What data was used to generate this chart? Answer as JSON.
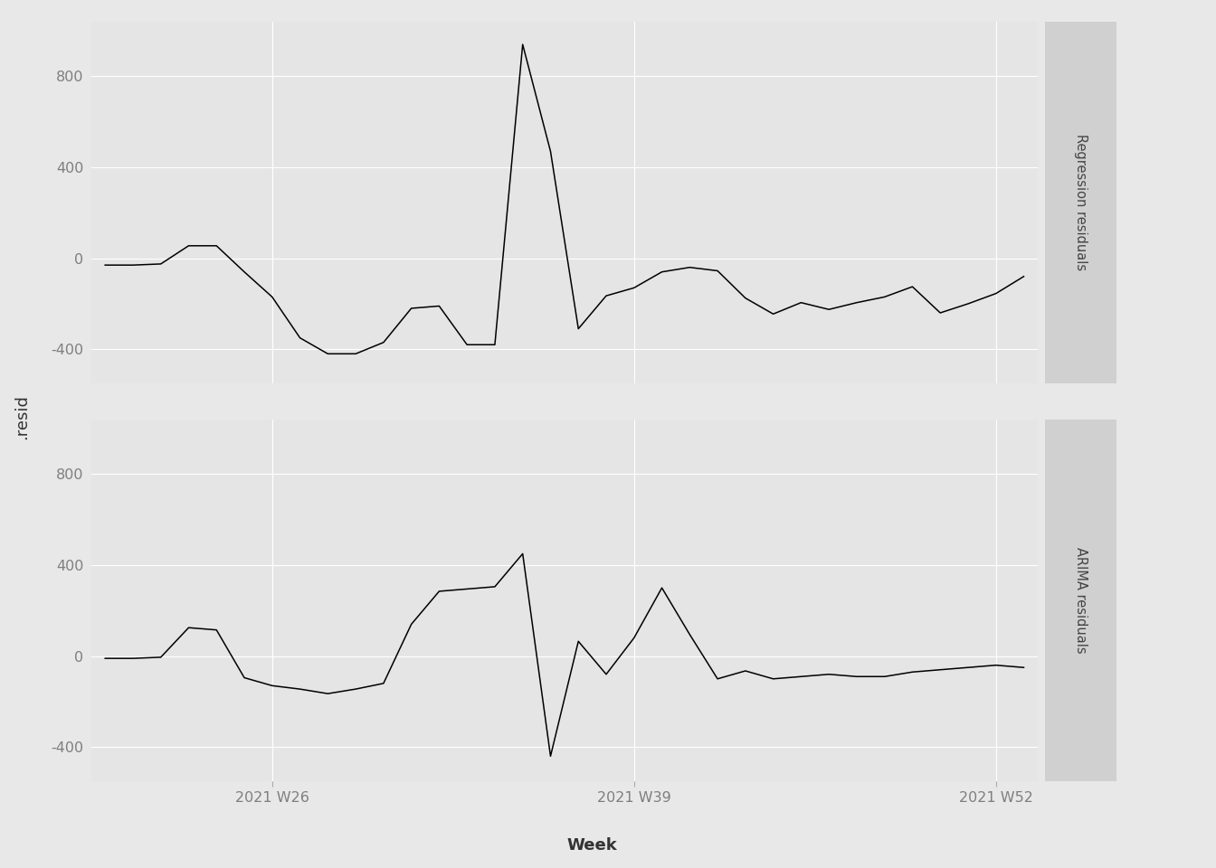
{
  "regression_residuals": [
    -30,
    -30,
    -25,
    55,
    55,
    -60,
    -170,
    -350,
    -420,
    -420,
    -370,
    -220,
    -210,
    -380,
    -380,
    940,
    470,
    -310,
    -165,
    -130,
    -60,
    -40,
    -55,
    -175,
    -245,
    -195,
    -225,
    -195,
    -170,
    -125,
    -240,
    -200,
    -155,
    -80
  ],
  "arima_residuals": [
    -10,
    -10,
    -5,
    125,
    115,
    -95,
    -130,
    -145,
    -165,
    -145,
    -120,
    140,
    285,
    295,
    305,
    450,
    -440,
    65,
    -80,
    80,
    300,
    95,
    -100,
    -65,
    -100,
    -90,
    -80,
    -90,
    -90,
    -70,
    -60,
    -50,
    -40,
    -50
  ],
  "x_weeks": [
    20,
    21,
    22,
    23,
    24,
    25,
    26,
    27,
    28,
    29,
    30,
    31,
    32,
    33,
    34,
    35,
    36,
    37,
    38,
    39,
    40,
    41,
    42,
    43,
    44,
    45,
    46,
    47,
    48,
    49,
    50,
    51,
    52,
    53
  ],
  "xtick_positions": [
    26,
    39,
    52
  ],
  "xtick_labels": [
    "2021 W26",
    "2021 W39",
    "2021 W52"
  ],
  "yticks": [
    -400,
    0,
    400,
    800
  ],
  "ylim": [
    -550,
    1040
  ],
  "ylabel": ".resid",
  "xlabel": "Week",
  "panel1_label": "Regression residuals",
  "panel2_label": "ARIMA residuals",
  "bg_color": "#e8e8e8",
  "panel_bg_color": "#e5e5e5",
  "line_color": "#000000",
  "grid_color": "#ffffff",
  "tick_label_color": "#7f7f7f",
  "axis_label_color": "#333333",
  "strip_bg_color": "#d0d0d0"
}
